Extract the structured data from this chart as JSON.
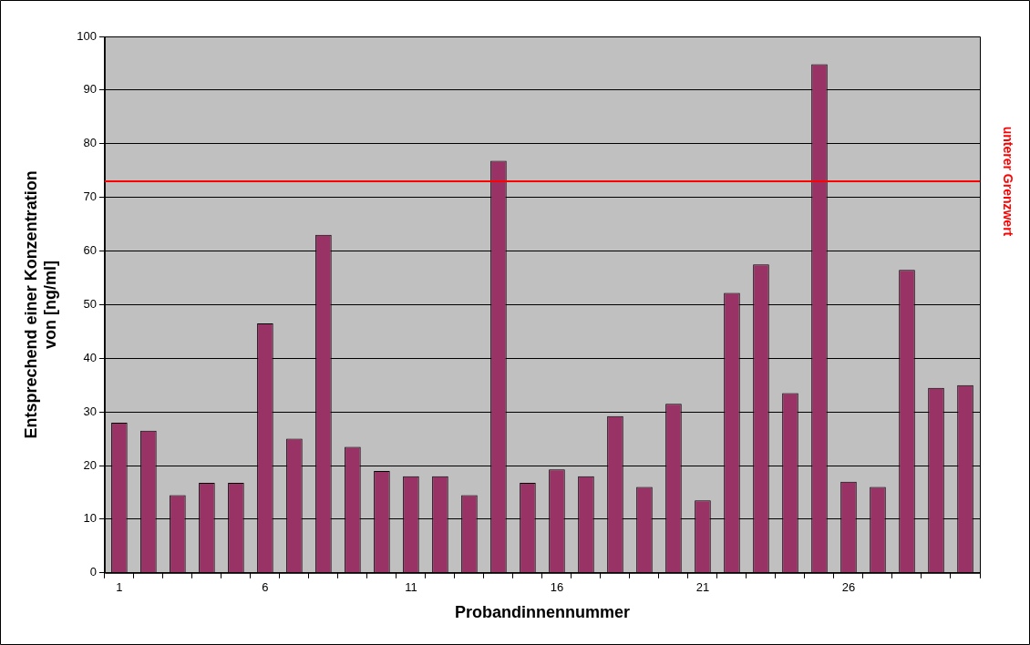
{
  "chart_data": {
    "type": "bar",
    "xlabel": "Probandinnennummer",
    "ylabel": "Entsprechend einer Konzentration\nvon [ng/ml]",
    "categories": [
      "1",
      null,
      null,
      null,
      null,
      "6",
      null,
      null,
      null,
      null,
      "11",
      null,
      null,
      null,
      null,
      "16",
      null,
      null,
      null,
      null,
      "21",
      null,
      null,
      null,
      null,
      "26",
      null,
      null,
      null,
      null
    ],
    "values": [
      28,
      26.5,
      14.5,
      16.8,
      16.8,
      46.5,
      25,
      63,
      23.5,
      19,
      18,
      18,
      14.5,
      76.8,
      16.8,
      19.3,
      18,
      29.2,
      16,
      31.5,
      13.5,
      52.2,
      57.5,
      33.5,
      94.8,
      17,
      16,
      56.5,
      34.5,
      35
    ],
    "color": "#993366",
    "ylim": [
      0,
      100
    ],
    "yticks": [
      0,
      10,
      20,
      30,
      40,
      50,
      60,
      70,
      80,
      90,
      100
    ],
    "grid": "y",
    "legend": false,
    "ref_lines": [
      {
        "axis": "y",
        "value": 73,
        "label": "unterer Grenzwert",
        "color": "#ff0000"
      }
    ]
  }
}
